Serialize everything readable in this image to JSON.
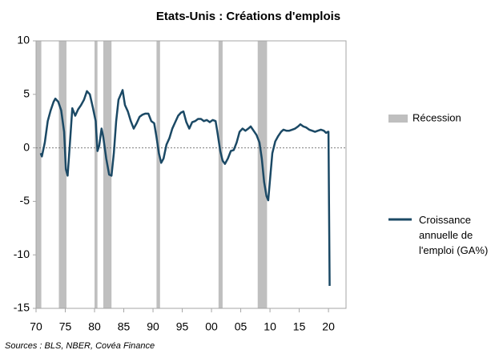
{
  "chart_data": {
    "type": "line",
    "title": "Etats-Unis : Créations d'emplois",
    "source": "Sources : BLS, NBER, Covéa Finance",
    "xlim": [
      1970,
      2023
    ],
    "xticks": [
      {
        "value": 1970,
        "label": "70"
      },
      {
        "value": 1975,
        "label": "75"
      },
      {
        "value": 1980,
        "label": "80"
      },
      {
        "value": 1985,
        "label": "85"
      },
      {
        "value": 1990,
        "label": "90"
      },
      {
        "value": 1995,
        "label": "95"
      },
      {
        "value": 2000,
        "label": "00"
      },
      {
        "value": 2005,
        "label": "05"
      },
      {
        "value": 2010,
        "label": "10"
      },
      {
        "value": 2015,
        "label": "15"
      },
      {
        "value": 2020,
        "label": "20"
      }
    ],
    "ylim": [
      -15,
      10
    ],
    "yticks": [
      -15,
      -10,
      -5,
      0,
      5,
      10
    ],
    "recessions": {
      "name": "Récession",
      "color": "#bfbfbf",
      "periods": [
        [
          1970.0,
          1970.9
        ],
        [
          1973.9,
          1975.2
        ],
        [
          1980.0,
          1980.5
        ],
        [
          1981.5,
          1982.9
        ],
        [
          1990.6,
          1991.2
        ],
        [
          2001.2,
          2001.9
        ],
        [
          2007.9,
          2009.5
        ]
      ]
    },
    "series": [
      {
        "name": "Croissance annuelle de l'emploi (GA%)",
        "color": "#1b4965",
        "x": [
          1970.8,
          1971.0,
          1971.5,
          1972.0,
          1972.5,
          1973.0,
          1973.3,
          1973.8,
          1974.3,
          1974.8,
          1975.1,
          1975.4,
          1975.8,
          1976.2,
          1976.7,
          1977.2,
          1977.7,
          1978.2,
          1978.7,
          1979.2,
          1979.7,
          1980.2,
          1980.5,
          1980.8,
          1981.2,
          1981.5,
          1982.0,
          1982.5,
          1982.9,
          1983.3,
          1983.7,
          1984.1,
          1984.5,
          1984.8,
          1985.2,
          1985.7,
          1986.2,
          1986.7,
          1987.2,
          1987.7,
          1988.2,
          1988.7,
          1989.2,
          1989.7,
          1990.2,
          1990.6,
          1991.0,
          1991.4,
          1991.8,
          1992.3,
          1992.8,
          1993.3,
          1993.8,
          1994.3,
          1994.8,
          1995.2,
          1995.7,
          1996.2,
          1996.7,
          1997.2,
          1997.7,
          1998.2,
          1998.7,
          1999.2,
          1999.7,
          2000.2,
          2000.7,
          2001.0,
          2001.5,
          2001.9,
          2002.3,
          2002.8,
          2003.3,
          2003.8,
          2004.3,
          2004.8,
          2005.3,
          2005.8,
          2006.3,
          2006.7,
          2007.2,
          2007.7,
          2008.2,
          2008.6,
          2009.0,
          2009.4,
          2009.7,
          2010.0,
          2010.4,
          2010.9,
          2011.4,
          2011.9,
          2012.3,
          2012.8,
          2013.3,
          2013.8,
          2014.3,
          2014.8,
          2015.2,
          2015.7,
          2016.2,
          2016.7,
          2017.2,
          2017.7,
          2018.2,
          2018.7,
          2019.2,
          2019.6,
          2019.9,
          2020.0,
          2020.2
        ],
        "values": [
          -0.5,
          -0.8,
          0.5,
          2.5,
          3.5,
          4.3,
          4.6,
          4.3,
          3.5,
          1.5,
          -2.0,
          -2.6,
          0.5,
          3.7,
          3.0,
          3.6,
          4.0,
          4.5,
          5.3,
          5.0,
          3.8,
          2.5,
          -0.3,
          0.2,
          1.8,
          1.0,
          -1.0,
          -2.5,
          -2.6,
          -0.5,
          2.5,
          4.5,
          5.0,
          5.4,
          4.0,
          3.4,
          2.5,
          1.8,
          2.3,
          2.9,
          3.1,
          3.2,
          3.2,
          2.5,
          2.3,
          1.0,
          -0.5,
          -1.4,
          -1.0,
          0.3,
          0.9,
          1.8,
          2.4,
          3.0,
          3.3,
          3.4,
          2.4,
          1.8,
          2.4,
          2.5,
          2.7,
          2.7,
          2.5,
          2.6,
          2.4,
          2.6,
          2.5,
          1.5,
          -0.3,
          -1.2,
          -1.5,
          -1.0,
          -0.3,
          -0.2,
          0.5,
          1.5,
          1.8,
          1.6,
          1.8,
          2.0,
          1.6,
          1.2,
          0.5,
          -1.0,
          -3.2,
          -4.5,
          -4.9,
          -3.0,
          -0.5,
          0.6,
          1.1,
          1.5,
          1.7,
          1.6,
          1.6,
          1.7,
          1.8,
          2.0,
          2.2,
          2.0,
          1.9,
          1.7,
          1.6,
          1.5,
          1.6,
          1.7,
          1.6,
          1.4,
          1.5,
          1.5,
          -12.9
        ]
      }
    ]
  }
}
